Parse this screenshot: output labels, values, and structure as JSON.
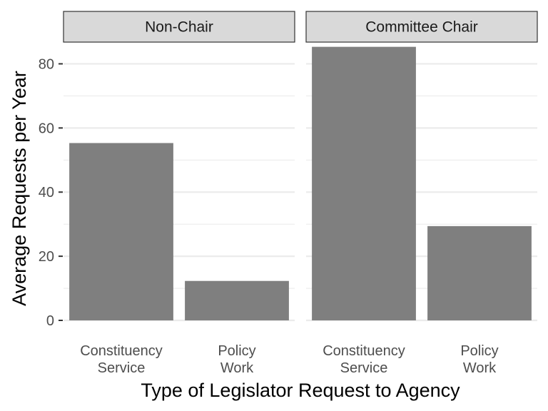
{
  "chart_data": {
    "type": "bar",
    "xlabel": "Type of Legislator Request to Agency",
    "ylabel": "Average Requests per Year",
    "ylim": [
      0,
      87
    ],
    "yticks": [
      0,
      20,
      40,
      60,
      80
    ],
    "grid": true,
    "bar_color": "#7f7f7f",
    "categories": [
      [
        "Constituency",
        "Service"
      ],
      [
        "Policy",
        "Work"
      ]
    ],
    "panels": [
      {
        "name": "Non-Chair",
        "values": [
          55.3,
          12.3
        ]
      },
      {
        "name": "Committee Chair",
        "values": [
          85.3,
          29.4
        ]
      }
    ]
  }
}
